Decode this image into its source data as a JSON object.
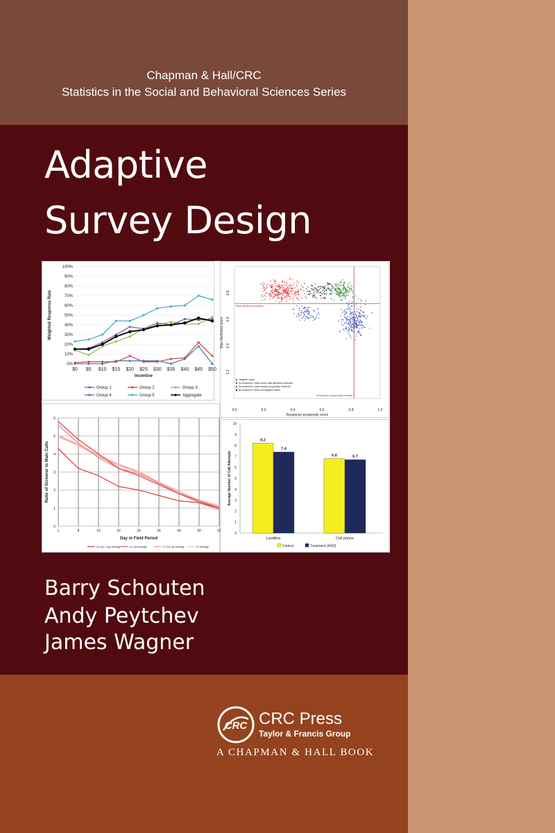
{
  "series": {
    "publisher_line": "Chapman & Hall/CRC",
    "series_name": "Statistics in the Social and Behavioral Sciences Series"
  },
  "title": {
    "line1": "Adaptive",
    "line2": "Survey Design"
  },
  "authors": [
    "Barry Schouten",
    "Andy Peytchev",
    "James Wagner"
  ],
  "publisher": {
    "logo_text": "CRC",
    "name": "CRC Press",
    "group": "Taylor & Francis Group",
    "imprint": "A CHAPMAN & HALL BOOK"
  },
  "colors": {
    "top_band": "#79493a",
    "main_band": "#510b10",
    "bottom_band": "#94431e",
    "spine_strip": "#c99470"
  },
  "chart_data": [
    {
      "type": "line",
      "ylabel": "Weighted Response Rate",
      "xlabel": "Incentive",
      "x": [
        "$0",
        "$5",
        "$10",
        "$15",
        "$20",
        "$25",
        "$30",
        "$35",
        "$40",
        "$45",
        "$50"
      ],
      "yticks": [
        "0%",
        "10%",
        "20%",
        "30%",
        "40%",
        "50%",
        "60%",
        "70%",
        "80%",
        "90%",
        "100%"
      ],
      "ylim": [
        0,
        100
      ],
      "series": [
        {
          "name": "Group 1",
          "color": "#4a7ebb",
          "values": [
            0,
            0,
            0,
            3,
            3,
            3,
            3,
            0,
            5,
            18,
            0
          ]
        },
        {
          "name": "Group 2",
          "color": "#c0504d",
          "values": [
            1,
            2,
            2,
            2,
            8,
            2,
            2,
            5,
            6,
            22,
            8
          ]
        },
        {
          "name": "Group 3",
          "color": "#9bbb59",
          "values": [
            14,
            9,
            18,
            23,
            28,
            36,
            40,
            43,
            41,
            41,
            48
          ]
        },
        {
          "name": "Group 4",
          "color": "#8064a2",
          "values": [
            15,
            16,
            22,
            30,
            38,
            36,
            42,
            40,
            46,
            45,
            46
          ]
        },
        {
          "name": "Group 5",
          "color": "#4bacc6",
          "values": [
            23,
            25,
            30,
            44,
            44,
            50,
            57,
            59,
            60,
            70,
            66
          ]
        },
        {
          "name": "Aggregate",
          "color": "#000000",
          "values": [
            15,
            15,
            20,
            28,
            33,
            35,
            39,
            40,
            42,
            47,
            44
          ]
        }
      ]
    },
    {
      "type": "scatter",
      "xlabel": "Response propensity score",
      "ylabel": "Bias likelihood score",
      "xticks": [
        "0.0",
        "0.2",
        "0.4",
        "0.6",
        "0.8",
        "1.0"
      ],
      "yticks": [
        "0.0",
        "0.2",
        "0.4",
        "0.6",
        "0.8",
        "1.0"
      ],
      "xlim": [
        0,
        1
      ],
      "ylim": [
        0,
        1
      ],
      "annotations": [
        "Bias likelihood median",
        "Response propensity median"
      ],
      "series": [
        {
          "name": "Targeted cases",
          "color": "#d9292a"
        },
        {
          "name": "No treatment: Cases below bias likelihood threshold",
          "color": "#3a4fb7"
        },
        {
          "name": "No treatment: Cases beyond propensity threshold",
          "color": "#2b8c2f"
        },
        {
          "name": "No treatment: Other non-targeted cases",
          "color": "#222222"
        }
      ]
    },
    {
      "type": "line",
      "ylabel": "Ratio of Screener to Main Calls",
      "xlabel": "Day in Field Period",
      "x": [
        "1",
        "8",
        "15",
        "22",
        "29",
        "36",
        "43",
        "50",
        "57"
      ],
      "yticks": [
        "0",
        "1",
        "2",
        "3",
        "4",
        "5",
        "6"
      ],
      "ylim": [
        0,
        6
      ],
      "series": [
        {
          "name": "Cur Qtr 7-day Average",
          "values": [
            4.3,
            3.2,
            2.8,
            2.2,
            2.0,
            1.7,
            1.4,
            1.3,
            1.0
          ]
        },
        {
          "name": "Cur Qtr Average",
          "values": [
            5.8,
            4.8,
            4.0,
            3.2,
            2.8,
            2.3,
            1.8,
            1.4,
            1.0
          ]
        },
        {
          "name": "CY Cur Qtr Average",
          "values": [
            5.6,
            4.6,
            3.8,
            3.2,
            2.9,
            2.4,
            1.8,
            1.3,
            0.9
          ]
        },
        {
          "name": "CY Average",
          "values": [
            5.0,
            4.5,
            3.9,
            3.4,
            3.0,
            2.4,
            1.9,
            1.4,
            1.1
          ]
        }
      ]
    },
    {
      "type": "bar",
      "ylabel": "Average Number of Call Attempts",
      "categories": [
        "Landline",
        "Cell phone"
      ],
      "yticks": [
        "0",
        "1",
        "2",
        "3",
        "4",
        "5",
        "6",
        "7",
        "8",
        "9",
        "10"
      ],
      "ylim": [
        0,
        10
      ],
      "series": [
        {
          "name": "Control",
          "color": "#f5ee1e",
          "values": [
            8.2,
            6.8
          ]
        },
        {
          "name": "Treatment (ASD)",
          "color": "#1f2a5c",
          "values": [
            7.4,
            6.7
          ]
        }
      ]
    }
  ]
}
